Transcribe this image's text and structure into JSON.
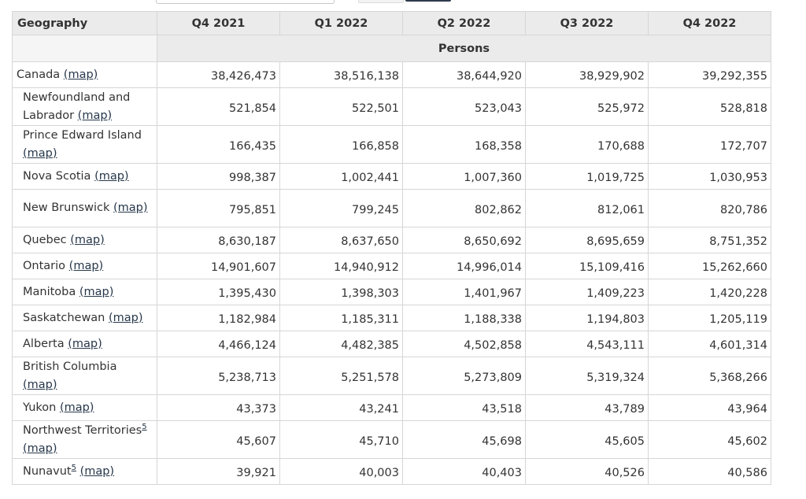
{
  "table": {
    "headers": [
      "Geography",
      "Q4 2021",
      "Q1 2022",
      "Q2 2022",
      "Q3 2022",
      "Q4 2022"
    ],
    "unit_label": "Persons",
    "map_link_label": "(map)",
    "rows": [
      {
        "geo": "Canada",
        "values": [
          "38,426,473",
          "38,516,138",
          "38,644,920",
          "38,929,902",
          "39,292,355"
        ]
      },
      {
        "geo": "Newfoundland and Labrador",
        "values": [
          "521,854",
          "522,501",
          "523,043",
          "525,972",
          "528,818"
        ]
      },
      {
        "geo": "Prince Edward Island",
        "values": [
          "166,435",
          "166,858",
          "168,358",
          "170,688",
          "172,707"
        ]
      },
      {
        "geo": "Nova Scotia",
        "values": [
          "998,387",
          "1,002,441",
          "1,007,360",
          "1,019,725",
          "1,030,953"
        ]
      },
      {
        "geo": "New Brunswick",
        "values": [
          "795,851",
          "799,245",
          "802,862",
          "812,061",
          "820,786"
        ]
      },
      {
        "geo": "Quebec",
        "values": [
          "8,630,187",
          "8,637,650",
          "8,650,692",
          "8,695,659",
          "8,751,352"
        ]
      },
      {
        "geo": "Ontario",
        "values": [
          "14,901,607",
          "14,940,912",
          "14,996,014",
          "15,109,416",
          "15,262,660"
        ]
      },
      {
        "geo": "Manitoba",
        "values": [
          "1,395,430",
          "1,398,303",
          "1,401,967",
          "1,409,223",
          "1,420,228"
        ]
      },
      {
        "geo": "Saskatchewan",
        "values": [
          "1,182,984",
          "1,185,311",
          "1,188,338",
          "1,194,803",
          "1,205,119"
        ]
      },
      {
        "geo": "Alberta",
        "values": [
          "4,466,124",
          "4,482,385",
          "4,502,858",
          "4,543,111",
          "4,601,314"
        ]
      },
      {
        "geo": "British Columbia",
        "values": [
          "5,238,713",
          "5,251,578",
          "5,273,809",
          "5,319,324",
          "5,368,266"
        ]
      },
      {
        "geo": "Yukon",
        "values": [
          "43,373",
          "43,241",
          "43,518",
          "43,789",
          "43,964"
        ]
      },
      {
        "geo": "Northwest Territories",
        "footnote": "5",
        "values": [
          "45,607",
          "45,710",
          "45,698",
          "45,605",
          "45,602"
        ]
      },
      {
        "geo": "Nunavut",
        "footnote": "5",
        "values": [
          "39,921",
          "40,003",
          "40,403",
          "40,526",
          "40,586"
        ]
      }
    ]
  }
}
